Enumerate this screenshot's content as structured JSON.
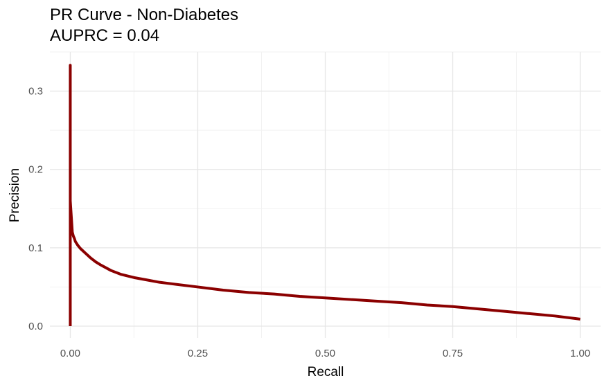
{
  "chart_data": {
    "type": "line",
    "title": "PR Curve - Non-Diabetes",
    "subtitle": "AUPRC = 0.04",
    "xlabel": "Recall",
    "ylabel": "Precision",
    "xlim": [
      -0.04,
      1.04
    ],
    "ylim": [
      -0.015,
      0.35
    ],
    "x_ticks": [
      0.0,
      0.25,
      0.5,
      0.75,
      1.0
    ],
    "x_tick_labels": [
      "0.00",
      "0.25",
      "0.50",
      "0.75",
      "1.00"
    ],
    "y_ticks": [
      0.0,
      0.1,
      0.2,
      0.3
    ],
    "y_tick_labels": [
      "0.0",
      "0.1",
      "0.2",
      "0.3"
    ],
    "grid": true,
    "line_color": "#8B0000",
    "series": [
      {
        "x": [
          0.0,
          0.0,
          0.0,
          0.0,
          0.002,
          0.003,
          0.004,
          0.006,
          0.008,
          0.01,
          0.015,
          0.02,
          0.03,
          0.04,
          0.05,
          0.06,
          0.08,
          0.1,
          0.125,
          0.15,
          0.175,
          0.2,
          0.25,
          0.3,
          0.35,
          0.4,
          0.45,
          0.5,
          0.55,
          0.6,
          0.65,
          0.7,
          0.75,
          0.8,
          0.85,
          0.9,
          0.95,
          1.0
        ],
        "y": [
          0.0,
          0.333,
          0.215,
          0.16,
          0.14,
          0.13,
          0.12,
          0.115,
          0.112,
          0.108,
          0.103,
          0.099,
          0.093,
          0.087,
          0.082,
          0.078,
          0.071,
          0.066,
          0.062,
          0.059,
          0.056,
          0.054,
          0.05,
          0.046,
          0.043,
          0.041,
          0.038,
          0.036,
          0.034,
          0.032,
          0.03,
          0.027,
          0.025,
          0.022,
          0.019,
          0.016,
          0.013,
          0.009
        ]
      }
    ]
  }
}
